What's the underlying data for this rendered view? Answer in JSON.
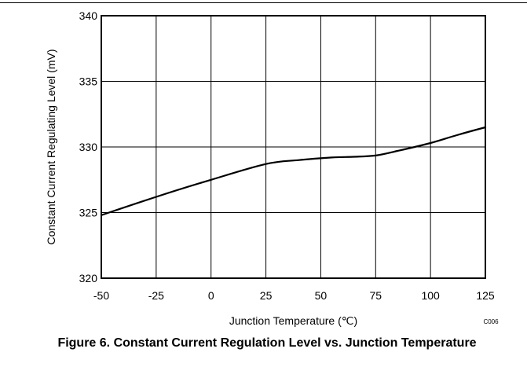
{
  "caption": "Figure 6. Constant Current Regulation Level vs. Junction Temperature",
  "chart_data": {
    "type": "line",
    "title": "",
    "xlabel": "Junction Temperature (℃)",
    "ylabel": "Constant Current Regulating Level (mV)",
    "xlim": [
      -50,
      125
    ],
    "ylim": [
      320,
      340
    ],
    "xticks": [
      -50,
      -25,
      0,
      25,
      50,
      75,
      100,
      125
    ],
    "yticks": [
      320,
      325,
      330,
      335,
      340
    ],
    "grid": true,
    "figure_code": "C006",
    "series": [
      {
        "color": "#000000",
        "x": [
          -50,
          -25,
          0,
          25,
          40,
          55,
          65,
          75,
          85,
          100,
          112,
          125
        ],
        "y": [
          324.8,
          326.2,
          327.5,
          328.7,
          329.0,
          329.2,
          329.25,
          329.35,
          329.7,
          330.3,
          330.9,
          331.5
        ]
      }
    ]
  }
}
